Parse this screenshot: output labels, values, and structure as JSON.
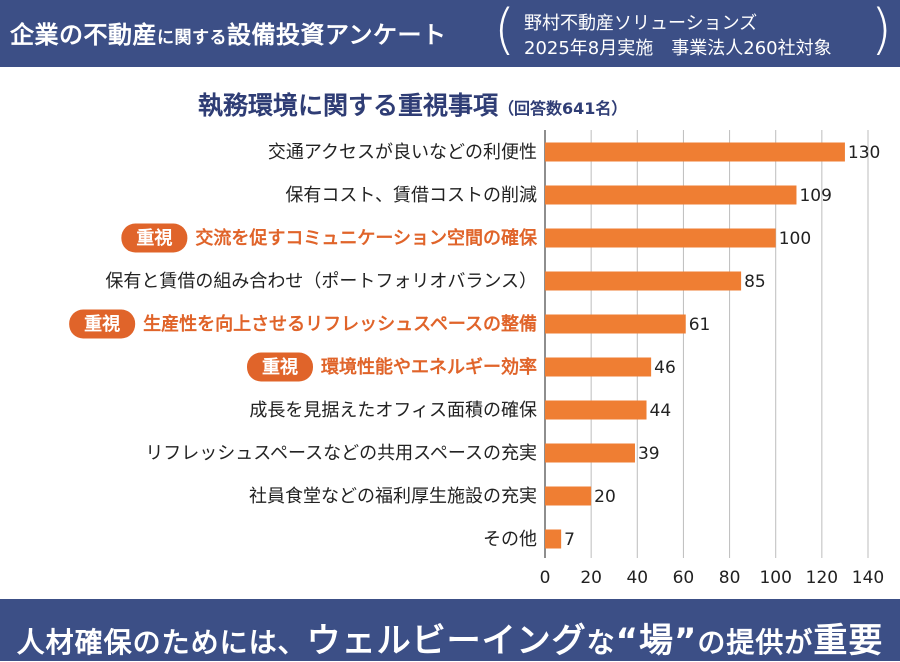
{
  "header": {
    "title_a": "企業の不動産",
    "title_b": "に関する",
    "title_c": "設備投資アンケート",
    "source_line1": "野村不動産ソリューションズ",
    "source_line2": "2025年8月実施　事業法人260社対象"
  },
  "chart_data": {
    "type": "bar",
    "orientation": "horizontal",
    "title": "執務環境に関する重視事項",
    "title_note": "（回答数641名）",
    "categories": [
      "交通アクセスが良いなどの利便性",
      "保有コスト、賃借コストの削減",
      "交流を促すコミュニケーション空間の確保",
      "保有と賃借の組み合わせ（ポートフォリオバランス）",
      "生産性を向上させるリフレッシュスペースの整備",
      "環境性能やエネルギー効率",
      "成長を見据えたオフィス面積の確保",
      "リフレッシュスペースなどの共用スペースの充実",
      "社員食堂などの福利厚生施設の充実",
      "その他"
    ],
    "values": [
      130,
      109,
      100,
      85,
      61,
      46,
      44,
      39,
      20,
      7
    ],
    "emphasized": [
      false,
      false,
      true,
      false,
      true,
      true,
      false,
      false,
      false,
      false
    ],
    "badge_label": "重視",
    "xlim": [
      0,
      140
    ],
    "xticks": [
      0,
      20,
      40,
      60,
      80,
      100,
      120,
      140
    ],
    "xtick_labels": [
      "0",
      "20",
      "40",
      "60",
      "80",
      "100",
      "120",
      "140"
    ],
    "grid": true,
    "bar_color": "#ef7e33",
    "emphasis_color": "#e0642a"
  },
  "footer": {
    "part1": "人材確保のためには、",
    "part2": "ウェルビーイング",
    "part3": "な",
    "part4": "“場”",
    "part5": "の提供が",
    "part6": "重要"
  },
  "colors": {
    "banner": "#3c4f86",
    "title_text": "#2f3d75",
    "grid": "#bdbdbd"
  }
}
